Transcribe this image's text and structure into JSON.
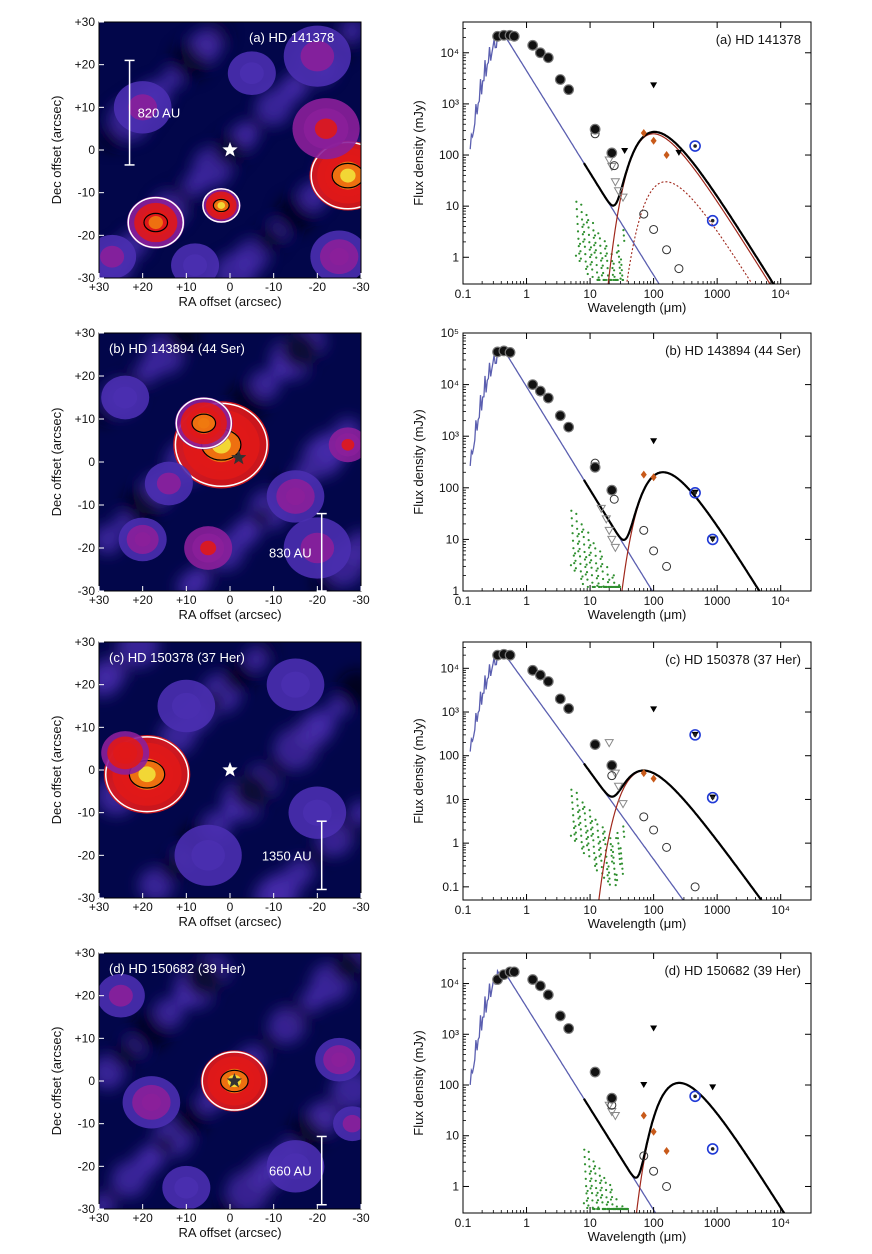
{
  "colors": {
    "map_low": "#02064a",
    "map_mid": "#4a2fb0",
    "map_magenta": "#8b1f9a",
    "map_red": "#e01818",
    "map_orange": "#f07a10",
    "map_yellow": "#f2e23a",
    "photosphere": "#5b5fb0",
    "disk_model": "#a0281c",
    "total_model": "#000000",
    "spectrum": "#2f8f2f",
    "submm_circle": "#1f39d6"
  },
  "images": [
    {
      "label": "(a) HD 141378",
      "scale_label": "820 AU",
      "xlabel": "RA offset (arcsec)",
      "ylabel": "Dec offset (arcsec)",
      "xticks": [
        "+30",
        "+20",
        "+10",
        "0",
        "-10",
        "-20",
        "-30"
      ],
      "yticks": [
        "+30",
        "+20",
        "+10",
        "0",
        "-10",
        "-20",
        "-30"
      ]
    },
    {
      "label": "(b) HD 143894 (44 Ser)",
      "scale_label": "830 AU",
      "xlabel": "RA offset (arcsec)",
      "ylabel": "Dec offset (arcsec)",
      "xticks": [
        "+30",
        "+20",
        "+10",
        "0",
        "-10",
        "-20",
        "-30"
      ],
      "yticks": [
        "+30",
        "+20",
        "+10",
        "0",
        "-10",
        "-20",
        "-30"
      ]
    },
    {
      "label": "(c) HD 150378 (37 Her)",
      "scale_label": "1350 AU",
      "xlabel": "RA offset (arcsec)",
      "ylabel": "Dec offset (arcsec)",
      "xticks": [
        "+30",
        "+20",
        "+10",
        "0",
        "-10",
        "-20",
        "-30"
      ],
      "yticks": [
        "+30",
        "+20",
        "+10",
        "0",
        "-10",
        "-20",
        "-30"
      ]
    },
    {
      "label": "(d) HD 150682 (39 Her)",
      "scale_label": "660 AU",
      "xlabel": "RA offset (arcsec)",
      "ylabel": "Dec offset (arcsec)",
      "xticks": [
        "+30",
        "+20",
        "+10",
        "0",
        "-10",
        "-20",
        "-30"
      ],
      "yticks": [
        "+30",
        "+20",
        "+10",
        "0",
        "-10",
        "-20",
        "-30"
      ]
    }
  ],
  "chart_data": [
    {
      "type": "scatter",
      "title": "(a) HD 141378",
      "xlabel": "Wavelength (μm)",
      "ylabel": "Flux density (mJy)",
      "xscale": "log",
      "yscale": "log",
      "xlim": [
        0.1,
        30000
      ],
      "ylim": [
        0.3,
        40000
      ],
      "xticks": [
        "0.1",
        "1",
        "10",
        "100",
        "1000",
        "10⁴"
      ],
      "yticks": [
        "1",
        "10",
        "100",
        "10³",
        "10⁴"
      ],
      "peak_flux": 22000,
      "photosphere_norm": 22000,
      "disk": {
        "peak_um": 70,
        "peak_flux": 260
      },
      "photometry": [
        [
          0.35,
          21000
        ],
        [
          0.44,
          22000
        ],
        [
          0.55,
          22000
        ],
        [
          0.64,
          21000
        ],
        [
          1.25,
          14000
        ],
        [
          1.65,
          10000
        ],
        [
          2.2,
          8000
        ],
        [
          3.4,
          3000
        ],
        [
          4.6,
          1900
        ],
        [
          12,
          320
        ],
        [
          22,
          110
        ]
      ],
      "far_ir": [
        [
          70,
          270
        ],
        [
          100,
          190
        ],
        [
          160,
          100
        ]
      ],
      "upper_limits": [
        [
          35,
          120
        ],
        [
          100,
          2300
        ],
        [
          250,
          110
        ]
      ],
      "submm": [
        [
          450,
          150
        ],
        [
          850,
          5.2
        ]
      ],
      "photo_model_points": [
        [
          12,
          260
        ],
        [
          24,
          62
        ],
        [
          70,
          7
        ],
        [
          100,
          3.5
        ],
        [
          160,
          1.4
        ],
        [
          250,
          0.6
        ]
      ],
      "grey_limits": [
        [
          20,
          80
        ],
        [
          22,
          60
        ],
        [
          25,
          30
        ],
        [
          28,
          20
        ],
        [
          33,
          15
        ]
      ],
      "extra_components": [
        {
          "peak_um": 110,
          "peak_flux": 30,
          "style": "dotted"
        }
      ],
      "spectrum_range_um": [
        6,
        35
      ]
    },
    {
      "type": "scatter",
      "title": "(b) HD 143894 (44 Ser)",
      "xlabel": "Wavelength (μm)",
      "ylabel": "Flux density (mJy)",
      "xscale": "log",
      "yscale": "log",
      "xlim": [
        0.1,
        30000
      ],
      "ylim": [
        1,
        100000
      ],
      "xticks": [
        "0.1",
        "1",
        "10",
        "100",
        "1000",
        "10⁴"
      ],
      "yticks": [
        "1",
        "10",
        "100",
        "10³",
        "10⁴",
        "10⁵"
      ],
      "peak_flux": 45000,
      "photosphere_norm": 45000,
      "disk": {
        "peak_um": 100,
        "peak_flux": 200
      },
      "photometry": [
        [
          0.35,
          43000
        ],
        [
          0.44,
          45000
        ],
        [
          0.55,
          42000
        ],
        [
          1.25,
          10000
        ],
        [
          1.65,
          7500
        ],
        [
          2.2,
          5500
        ],
        [
          3.4,
          2500
        ],
        [
          4.6,
          1500
        ],
        [
          12,
          250
        ],
        [
          22,
          90
        ]
      ],
      "far_ir": [
        [
          70,
          180
        ],
        [
          100,
          160
        ]
      ],
      "upper_limits": [
        [
          100,
          800
        ],
        [
          450,
          80
        ],
        [
          850,
          10
        ]
      ],
      "submm": [
        [
          450,
          80
        ],
        [
          850,
          10
        ]
      ],
      "photo_model_points": [
        [
          12,
          300
        ],
        [
          24,
          60
        ],
        [
          70,
          15
        ],
        [
          100,
          6
        ],
        [
          160,
          3
        ]
      ],
      "grey_limits": [
        [
          15,
          40
        ],
        [
          18,
          25
        ],
        [
          20,
          15
        ],
        [
          22,
          10
        ],
        [
          25,
          7
        ]
      ],
      "extra_components": [],
      "spectrum_range_um": [
        5,
        30
      ]
    },
    {
      "type": "scatter",
      "title": "(c) HD 150378 (37 Her)",
      "xlabel": "Wavelength (μm)",
      "ylabel": "Flux density (mJy)",
      "xscale": "log",
      "yscale": "log",
      "xlim": [
        0.1,
        30000
      ],
      "ylim": [
        0.05,
        40000
      ],
      "xticks": [
        "0.1",
        "1",
        "10",
        "100",
        "1000",
        "10⁴"
      ],
      "yticks": [
        "0.1",
        "1",
        "10",
        "100",
        "10³",
        "10⁴"
      ],
      "peak_flux": 21000,
      "photosphere_norm": 21000,
      "disk": {
        "peak_um": 50,
        "peak_flux": 45
      },
      "photometry": [
        [
          0.35,
          20000
        ],
        [
          0.44,
          21000
        ],
        [
          0.55,
          20000
        ],
        [
          1.25,
          9000
        ],
        [
          1.65,
          7000
        ],
        [
          2.2,
          5000
        ],
        [
          3.4,
          2000
        ],
        [
          4.6,
          1200
        ],
        [
          12,
          180
        ],
        [
          22,
          60
        ]
      ],
      "far_ir": [
        [
          70,
          40
        ],
        [
          100,
          30
        ]
      ],
      "upper_limits": [
        [
          100,
          1150
        ],
        [
          450,
          300
        ],
        [
          850,
          11
        ]
      ],
      "submm": [
        [
          450,
          300
        ],
        [
          850,
          11
        ]
      ],
      "photo_model_points": [
        [
          22,
          35
        ],
        [
          70,
          4
        ],
        [
          100,
          2
        ],
        [
          160,
          0.8
        ],
        [
          450,
          0.1
        ]
      ],
      "grey_limits": [
        [
          20,
          200
        ],
        [
          25,
          40
        ],
        [
          28,
          20
        ],
        [
          33,
          8
        ]
      ],
      "extra_components": [],
      "spectrum_range_um": [
        5,
        35
      ]
    },
    {
      "type": "scatter",
      "title": "(d) HD 150682 (39 Her)",
      "xlabel": "Wavelength (μm)",
      "ylabel": "Flux density (mJy)",
      "xscale": "log",
      "yscale": "log",
      "xlim": [
        0.1,
        30000
      ],
      "ylim": [
        0.3,
        40000
      ],
      "xticks": [
        "0.1",
        "1",
        "10",
        "100",
        "1000",
        "10⁴"
      ],
      "yticks": [
        "1",
        "10",
        "100",
        "10³",
        "10⁴"
      ],
      "peak_flux": 17000,
      "photosphere_norm": 17000,
      "disk": {
        "peak_um": 180,
        "peak_flux": 110
      },
      "photometry": [
        [
          0.35,
          12000
        ],
        [
          0.44,
          15000
        ],
        [
          0.55,
          17000
        ],
        [
          0.64,
          17000
        ],
        [
          1.25,
          12000
        ],
        [
          1.65,
          9000
        ],
        [
          2.2,
          6000
        ],
        [
          3.4,
          2300
        ],
        [
          4.6,
          1300
        ],
        [
          12,
          180
        ],
        [
          22,
          55
        ]
      ],
      "far_ir": [
        [
          70,
          25
        ],
        [
          100,
          12
        ],
        [
          160,
          5
        ]
      ],
      "upper_limits": [
        [
          70,
          100
        ],
        [
          100,
          1300
        ],
        [
          850,
          90
        ]
      ],
      "submm": [
        [
          450,
          60
        ],
        [
          850,
          5.5
        ]
      ],
      "photo_model_points": [
        [
          22,
          40
        ],
        [
          70,
          4
        ],
        [
          100,
          2
        ],
        [
          160,
          1
        ]
      ],
      "grey_limits": [
        [
          20,
          40
        ],
        [
          22,
          30
        ],
        [
          25,
          25
        ]
      ],
      "extra_components": [],
      "spectrum_range_um": [
        8,
        40
      ]
    }
  ]
}
